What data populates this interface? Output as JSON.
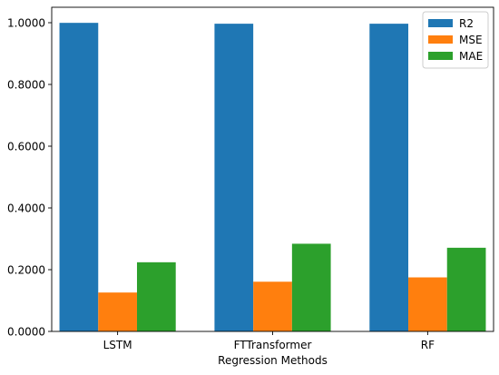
{
  "chart_data": {
    "type": "bar",
    "title": "",
    "xlabel": "Regression Methods",
    "ylabel": "",
    "categories": [
      "LSTM",
      "FTTransformer",
      "RF"
    ],
    "series": [
      {
        "name": "R2",
        "color": "#1f77b4",
        "values": [
          0.9995,
          0.9967,
          0.9967
        ]
      },
      {
        "name": "MSE",
        "color": "#ff7f0e",
        "values": [
          0.126,
          0.161,
          0.175
        ]
      },
      {
        "name": "MAE",
        "color": "#2ca02c",
        "values": [
          0.224,
          0.284,
          0.271
        ]
      }
    ],
    "ylim": [
      0,
      1.05
    ],
    "yticks": [
      0,
      0.2,
      0.4,
      0.6,
      0.8,
      1.0
    ],
    "ytick_labels": [
      "0.0000",
      "0.2000",
      "0.4000",
      "0.6000",
      "0.8000",
      "1.0000"
    ],
    "grid": false,
    "legend_position": "top-right"
  }
}
